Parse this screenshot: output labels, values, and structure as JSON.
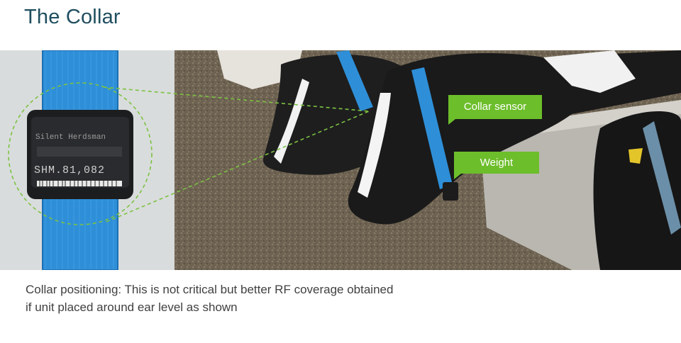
{
  "title": "The Collar",
  "device": {
    "brand_label": "Silent Herdsman",
    "serial_label": "SHM.81,082"
  },
  "callouts": {
    "sensor": "Collar sensor",
    "weight": "Weight"
  },
  "caption": {
    "line1": "Collar positioning: This is not critical but better RF coverage obtained",
    "line2": "if unit placed around ear level as shown"
  },
  "colors": {
    "title": "#1f4e5f",
    "callout_green": "#6dbe2b",
    "strap_blue": "#2e8fd8",
    "dashed_green": "#7cc242"
  }
}
